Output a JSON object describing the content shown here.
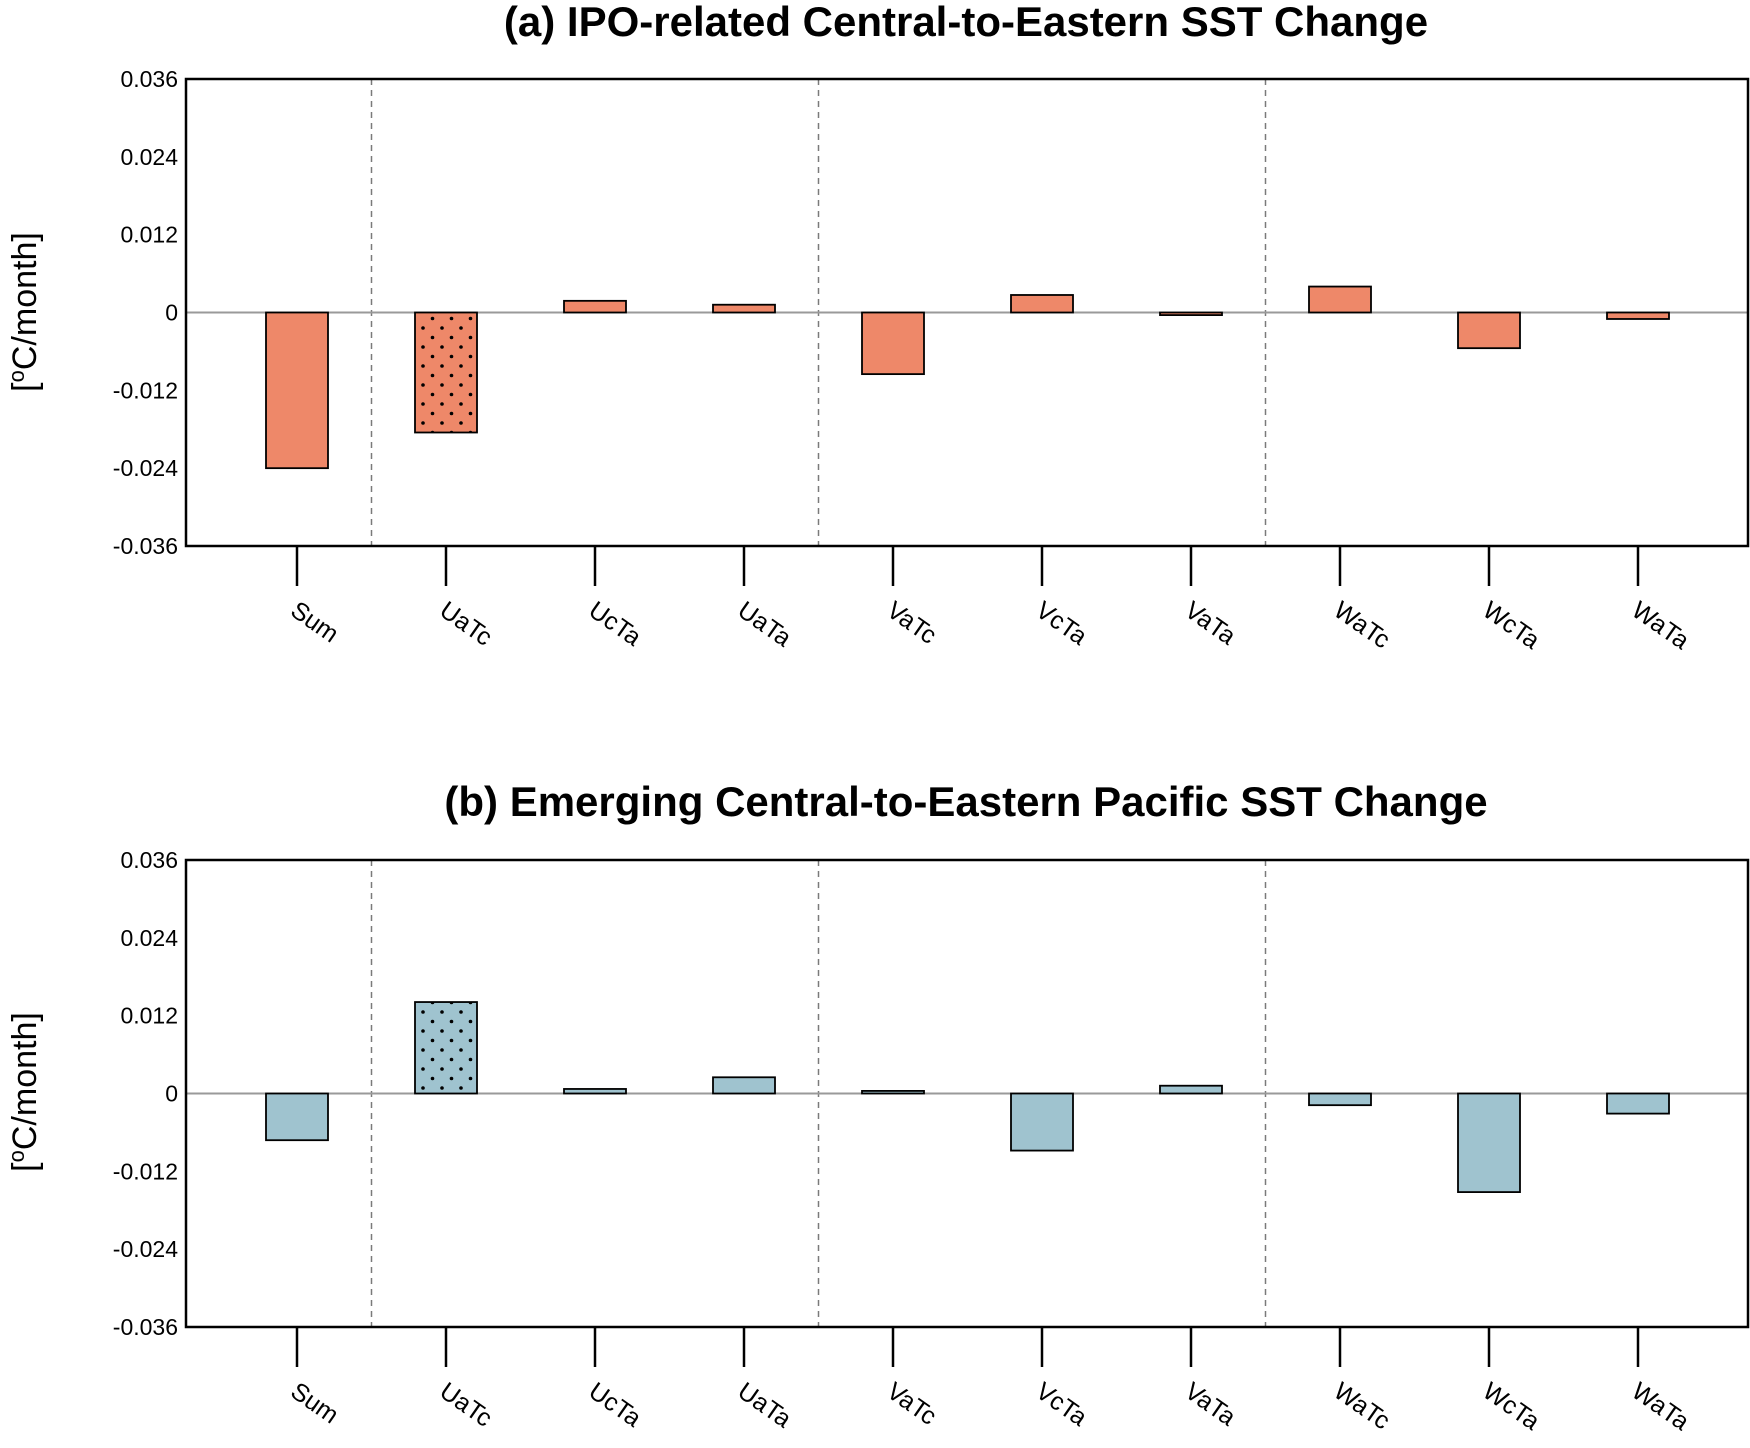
{
  "chart_data": [
    {
      "type": "bar",
      "title": "(a) IPO-related Central-to-Eastern SST Change",
      "ylabel_prefix": "[",
      "ylabel_sup": "o",
      "ylabel_suffix": "C/month]",
      "ylim": [
        -0.036,
        0.036
      ],
      "yticks": [
        0.036,
        0.024,
        0.012,
        0,
        -0.012,
        -0.024,
        -0.036
      ],
      "ytick_labels": [
        "0.036",
        "0.024",
        "0.012",
        "0",
        "-0.012",
        "-0.024",
        "-0.036"
      ],
      "categories": [
        "Sum",
        "UaTc",
        "UcTa",
        "UaTa",
        "VaTc",
        "VcTa",
        "VaTa",
        "WaTc",
        "WcTa",
        "WaTa"
      ],
      "values": [
        -0.024,
        -0.0185,
        0.0018,
        0.0012,
        -0.0095,
        0.0027,
        -0.0004,
        0.004,
        -0.0055,
        -0.001
      ],
      "stippled": [
        false,
        true,
        false,
        false,
        false,
        false,
        false,
        false,
        false,
        false
      ],
      "bar_color": "#ee8869",
      "group_separators_after_index": [
        0,
        3,
        6
      ]
    },
    {
      "type": "bar",
      "title": "(b) Emerging Central-to-Eastern Pacific SST Change",
      "ylabel_prefix": "[",
      "ylabel_sup": "o",
      "ylabel_suffix": "C/month]",
      "ylim": [
        -0.036,
        0.036
      ],
      "yticks": [
        0.036,
        0.024,
        0.012,
        0,
        -0.012,
        -0.024,
        -0.036
      ],
      "ytick_labels": [
        "0.036",
        "0.024",
        "0.012",
        "0",
        "-0.012",
        "-0.024",
        "-0.036"
      ],
      "categories": [
        "Sum",
        "UaTc",
        "UcTa",
        "UaTa",
        "VaTc",
        "VcTa",
        "VaTa",
        "WaTc",
        "WcTa",
        "WaTa"
      ],
      "values": [
        -0.0072,
        0.0141,
        0.0007,
        0.0025,
        0.0004,
        -0.0088,
        0.0012,
        -0.0018,
        -0.0152,
        -0.0031
      ],
      "stippled": [
        false,
        true,
        false,
        false,
        false,
        false,
        false,
        false,
        false,
        false
      ],
      "bar_color": "#9fc3cf",
      "group_separators_after_index": [
        0,
        3,
        6
      ]
    }
  ]
}
